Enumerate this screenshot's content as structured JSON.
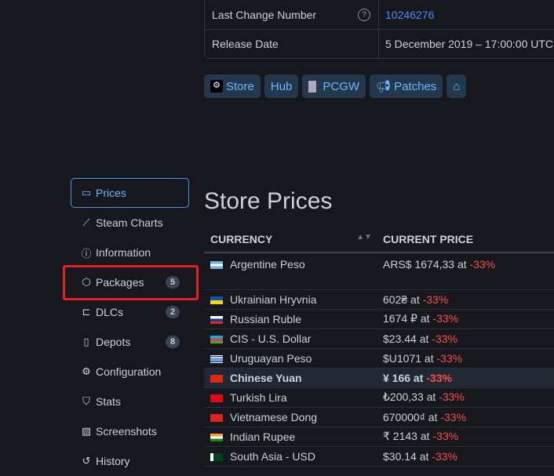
{
  "info": {
    "rows": [
      {
        "key": "Last Change Number",
        "value": "10246276",
        "help": "?"
      },
      {
        "key": "Release Date",
        "value": "5 December 2019 – 17:00:00 UTC"
      }
    ]
  },
  "buttons": [
    {
      "label": "Store",
      "icon": "steam-icon"
    },
    {
      "label": "Hub"
    },
    {
      "label": "PCGW",
      "icon": "pcgw-icon"
    },
    {
      "label": "Patches",
      "icon": "megaphone-icon"
    },
    {
      "label": "",
      "icon": "home-icon"
    }
  ],
  "sidebar": {
    "items": [
      {
        "label": "Prices",
        "icon": "wallet-icon",
        "active": true
      },
      {
        "label": "Steam Charts",
        "icon": "graph-icon"
      },
      {
        "label": "Information",
        "icon": "info-icon"
      },
      {
        "label": "Packages",
        "icon": "package-icon",
        "badge": "5"
      },
      {
        "label": "DLCs",
        "icon": "plug-icon",
        "badge": "2"
      },
      {
        "label": "Depots",
        "icon": "server-icon",
        "badge": "8"
      },
      {
        "label": "Configuration",
        "icon": "gear-icon"
      },
      {
        "label": "Stats",
        "icon": "bookmark-icon"
      },
      {
        "label": "Screenshots",
        "icon": "image-icon"
      },
      {
        "label": "History",
        "icon": "history-icon"
      }
    ]
  },
  "highlight_color": "#e8201a",
  "prices": {
    "title": "Store Prices",
    "headers": [
      "CURRENCY",
      "CURRENT PRICE"
    ],
    "rows": [
      {
        "currency": "Argentine Peso",
        "price": "ARS$ 1674,33 at",
        "discount": "-33%",
        "flag": "linear-gradient(#74acdf 33%,#fff 33% 66%,#74acdf 66%)"
      },
      {
        "currency": "Ukrainian Hryvnia",
        "price": "602₴ at",
        "discount": "-33%",
        "flag": "linear-gradient(#0057b7 50%,#ffd700 50%)"
      },
      {
        "currency": "Russian Ruble",
        "price": "1674 ₽ at",
        "discount": "-33%",
        "flag": "linear-gradient(#fff 33%,#0039a6 33% 66%,#d52b1e 66%)"
      },
      {
        "currency": "CIS - U.S. Dollar",
        "price": "$23.44 at",
        "discount": "-33%",
        "flag": "linear-gradient(#00b5e2 33%,#ef3340 33% 66%,#509e2f 66%)"
      },
      {
        "currency": "Uruguayan Peso",
        "price": "$U1071 at",
        "discount": "-33%",
        "flag": "repeating-linear-gradient(#fff 0 1.1px,#0038a8 1.1px 2.2px)"
      },
      {
        "currency": "Chinese Yuan",
        "price": "¥ 166 at",
        "discount": "-33%",
        "flag": "#de2910",
        "highlight": true
      },
      {
        "currency": "Turkish Lira",
        "price": "₺200,33 at",
        "discount": "-33%",
        "flag": "#e30a17"
      },
      {
        "currency": "Vietnamese Dong",
        "price": "670000₫ at",
        "discount": "-33%",
        "flag": "#da251d"
      },
      {
        "currency": "Indian Rupee",
        "price": "₹ 2143 at",
        "discount": "-33%",
        "flag": "linear-gradient(#ff9933 33%,#fff 33% 66%,#138808 66%)"
      },
      {
        "currency": "South Asia - USD",
        "price": "$30.14 at",
        "discount": "-33%",
        "flag": "linear-gradient(90deg,#fff 25%,#01411c 25%)"
      }
    ]
  }
}
